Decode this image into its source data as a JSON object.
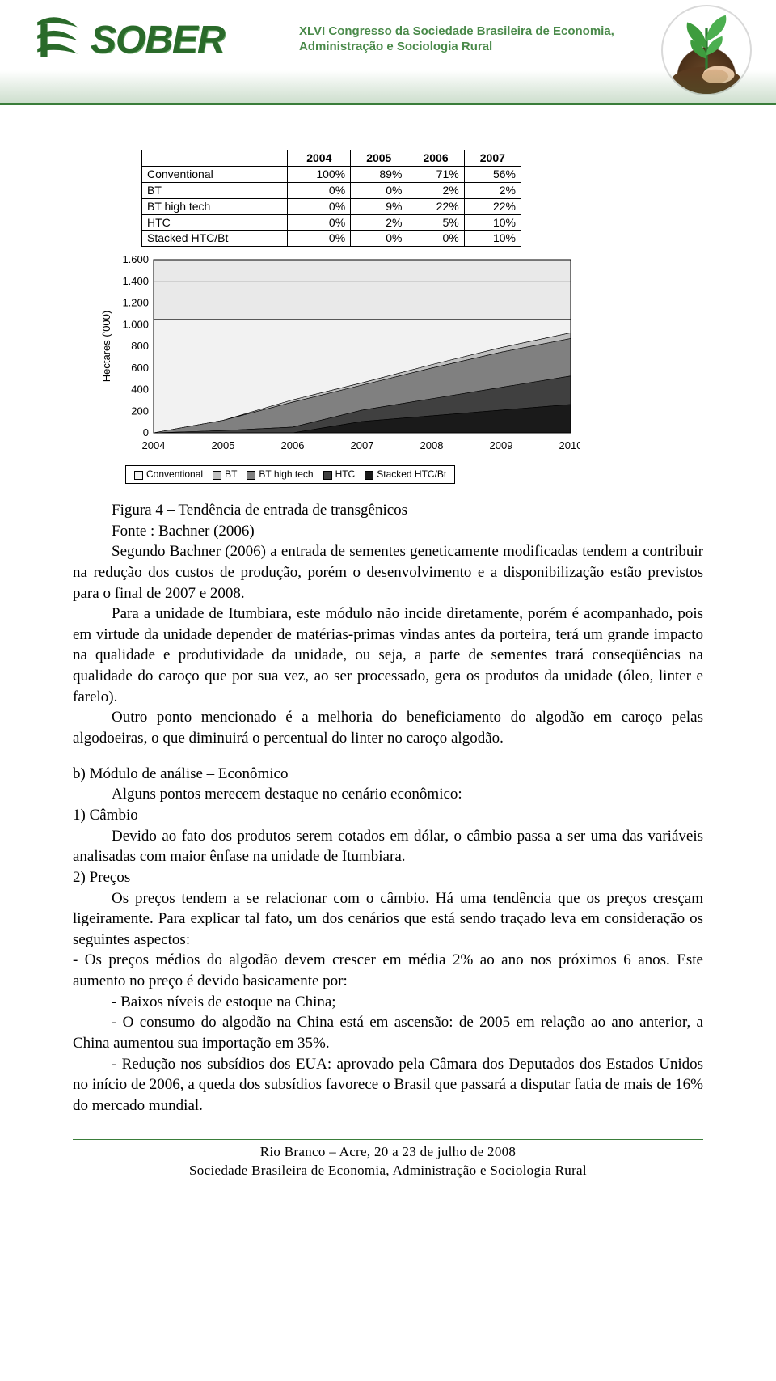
{
  "header": {
    "logo_word": "SOBER",
    "congress_line1": "XLVI Congresso da Sociedade Brasileira de Economia,",
    "congress_line2": "Administração e Sociologia Rural",
    "brand_color": "#2a6a2a"
  },
  "table": {
    "columns": [
      "2004",
      "2005",
      "2006",
      "2007"
    ],
    "rows": [
      {
        "label": "Conventional",
        "values": [
          "100%",
          "89%",
          "71%",
          "56%"
        ]
      },
      {
        "label": "BT",
        "values": [
          "0%",
          "0%",
          "2%",
          "2%"
        ]
      },
      {
        "label": "BT high tech",
        "values": [
          "0%",
          "9%",
          "22%",
          "22%"
        ]
      },
      {
        "label": "HTC",
        "values": [
          "0%",
          "2%",
          "5%",
          "10%"
        ]
      },
      {
        "label": "Stacked HTC/Bt",
        "values": [
          "0%",
          "0%",
          "0%",
          "10%"
        ]
      }
    ],
    "header_fontweight": "bold"
  },
  "chart": {
    "type": "area",
    "y_label": "Hectares ('000)",
    "x_categories": [
      "2004",
      "2005",
      "2006",
      "2007",
      "2008",
      "2009",
      "2010"
    ],
    "y_ticks": [
      0,
      200,
      400,
      600,
      800,
      1000,
      1200,
      1400,
      1600
    ],
    "y_tick_labels": [
      "0",
      "200",
      "400",
      "600",
      "800",
      "1.000",
      "1.200",
      "1.400",
      "1.600"
    ],
    "ylim": [
      0,
      1600
    ],
    "total_by_year": [
      1050,
      1050,
      1050,
      1050,
      1050,
      1050,
      1050
    ],
    "series": [
      {
        "name": "Conventional",
        "color": "#f2f2f2",
        "share": [
          1.0,
          0.89,
          0.71,
          0.56,
          0.4,
          0.25,
          0.12
        ]
      },
      {
        "name": "BT",
        "color": "#bfbfbf",
        "share": [
          0.0,
          0.0,
          0.02,
          0.02,
          0.03,
          0.04,
          0.05
        ]
      },
      {
        "name": "BT high tech",
        "color": "#808080",
        "share": [
          0.0,
          0.09,
          0.22,
          0.22,
          0.27,
          0.31,
          0.33
        ]
      },
      {
        "name": "HTC",
        "color": "#404040",
        "share": [
          0.0,
          0.02,
          0.05,
          0.1,
          0.15,
          0.2,
          0.25
        ]
      },
      {
        "name": "Stacked HTC/Bt",
        "color": "#1a1a1a",
        "share": [
          0.0,
          0.0,
          0.0,
          0.1,
          0.15,
          0.2,
          0.25
        ]
      }
    ],
    "legend_items": [
      {
        "label": "Conventional",
        "color": "#f2f2f2"
      },
      {
        "label": "BT",
        "color": "#bfbfbf"
      },
      {
        "label": "BT high tech",
        "color": "#808080"
      },
      {
        "label": "HTC",
        "color": "#404040"
      },
      {
        "label": "Stacked HTC/Bt",
        "color": "#1a1a1a"
      }
    ],
    "axis_color": "#000000",
    "grid_color": "#c8c8c8",
    "background_color": "#e9e9e9",
    "tick_fontsize": 13,
    "label_fontsize": 13
  },
  "body": {
    "caption_line1": "Figura 4 – Tendência de entrada de transgênicos",
    "caption_line2": "Fonte : Bachner (2006)",
    "p1": "Segundo Bachner (2006) a entrada de sementes geneticamente modificadas tendem a contribuir na redução dos custos de produção, porém o desenvolvimento e a disponibilização estão previstos para o final de 2007 e 2008.",
    "p2": "Para a unidade de Itumbiara, este módulo não incide diretamente, porém é acompanhado, pois em virtude da unidade depender de matérias-primas vindas antes da porteira, terá um grande impacto na qualidade e produtividade da unidade, ou seja, a parte de sementes trará conseqüências na qualidade do caroço que por sua vez, ao ser processado, gera os produtos da unidade (óleo, linter e farelo).",
    "p3": "Outro ponto mencionado é a melhoria do beneficiamento do algodão em caroço pelas algodoeiras, o que diminuirá o percentual do linter no caroço algodão.",
    "sec_b_title": "b) Módulo de análise – Econômico",
    "sec_b_intro": "Alguns pontos merecem destaque no cenário econômico:",
    "item1_title": "1) Câmbio",
    "item1_text": "Devido ao fato dos produtos serem cotados em dólar, o câmbio passa a ser uma das variáveis analisadas com maior ênfase na unidade de Itumbiara.",
    "item2_title": "2) Preços",
    "item2_text": "Os preços tendem a se relacionar com o câmbio. Há uma tendência que os preços cresçam ligeiramente. Para explicar tal fato, um dos cenários que está sendo traçado leva em consideração os seguintes aspectos:",
    "bullet1": "- Os preços médios do algodão devem crescer em média 2% ao ano nos próximos 6 anos. Este aumento no preço é devido basicamente por:",
    "sub1": "- Baixos níveis de estoque na China;",
    "sub2": "- O consumo do algodão na China está em ascensão: de 2005 em relação ao ano anterior, a China aumentou sua importação em 35%.",
    "sub3": "- Redução nos subsídios dos EUA: aprovado pela Câmara dos Deputados dos Estados Unidos no início de 2006, a queda dos subsídios favorece o Brasil que passará a disputar fatia de mais de 16% do mercado mundial."
  },
  "footer": {
    "line1": "Rio Branco – Acre, 20 a 23 de julho de 2008",
    "line2": "Sociedade Brasileira de Economia, Administração e Sociologia Rural"
  }
}
